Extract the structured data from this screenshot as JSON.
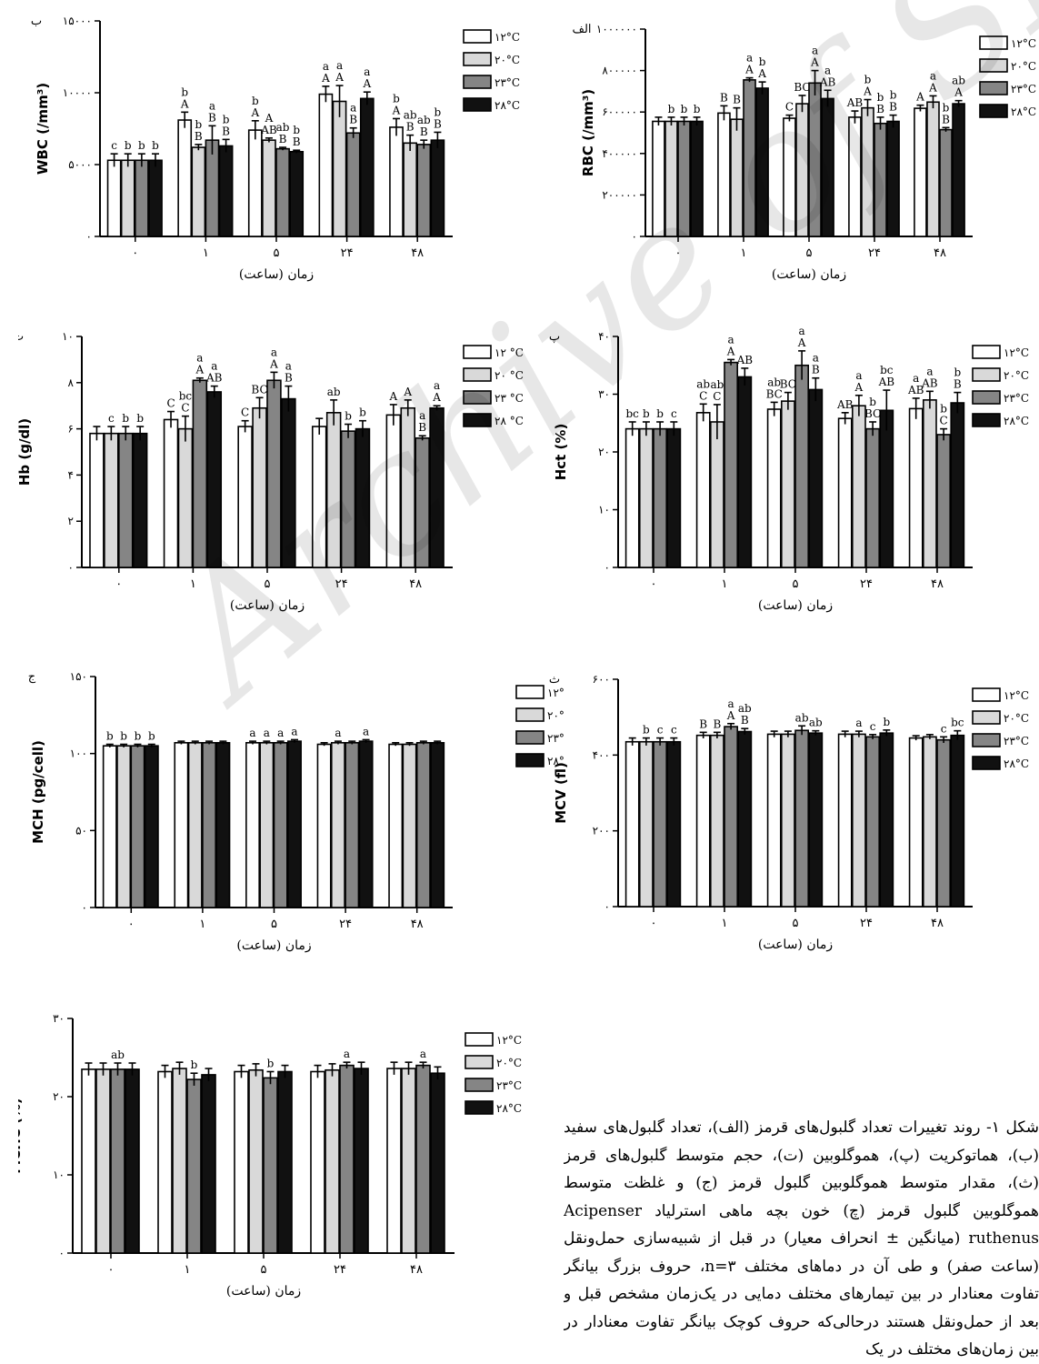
{
  "legend_default": [
    "۱۲°C",
    "۲۰°C",
    "۲۳°C",
    "۲۸°C"
  ],
  "legend_hb": [
    "۱۲ °C",
    "۲۰ °C",
    "۲۳ °C",
    "۲۸ °C"
  ],
  "legend_mch": [
    "۱۲°C",
    "۲۰°C",
    "۲۳°C",
    "۲۸°C"
  ],
  "colors": [
    "#ffffff",
    "#d9d9d9",
    "#858585",
    "#111111"
  ],
  "caption": "شکل ۱- روند تغییرات تعداد گلبول‌های قرمز (الف)، تعداد گلبول‌های سفید (ب)، هماتوکریت (پ)، هموگلوبین (ت)، حجم متوسط گلبول‌های قرمز (ث)، مقدار متوسط هموگلوبین گلبول قرمز (ج) و غلظت متوسط هموگلوبین گلبول قرمز (چ) خون بچه ماهی استرلیاد Acipenser ruthenus (میانگین ± انحراف معیار) در قبل از شبیه‌سازی حمل‌ونقل (ساعت صفر) و طی آن در دماهای مختلف n=۳، حروف بزرگ بیانگر تفاوت معنادار در بین تیمارهای مختلف دمایی در یک‌زمان مشخص قبل و بعد از حمل‌ونقل هستند درحالی‌که حروف کوچک بیانگر تفاوت معنادار در بین زمان‌های مختلف در یک",
  "watermark": "Archive of SID",
  "chart_data": [
    {
      "id": "wbc",
      "type": "bar",
      "panel_label": "ب",
      "ylabel": "WBC (/mm³)",
      "xlabel": "زمان (ساعت)",
      "ylim": [
        0,
        15000
      ],
      "yticks": [
        0,
        5000,
        10000,
        15000
      ],
      "ytick_labels": [
        "۰",
        "۵۰۰۰",
        "۱۰۰۰۰",
        "۱۵۰۰۰"
      ],
      "categories": [
        "۰",
        "۱",
        "۵",
        "۲۴",
        "۴۸"
      ],
      "grid": false,
      "legend_key": "legend_default",
      "series": [
        {
          "values": [
            5300,
            8100,
            7400,
            9900,
            7600
          ],
          "err": [
            450,
            550,
            650,
            550,
            600
          ]
        },
        {
          "values": [
            5300,
            6200,
            6700,
            9400,
            6500
          ],
          "err": [
            450,
            200,
            150,
            1100,
            550
          ]
        },
        {
          "values": [
            5300,
            6700,
            6100,
            7200,
            6400
          ],
          "err": [
            450,
            1000,
            100,
            350,
            300
          ]
        },
        {
          "values": [
            5300,
            6300,
            5900,
            9600,
            6700
          ],
          "err": [
            450,
            450,
            100,
            450,
            550
          ]
        }
      ],
      "labels": [
        [
          "c",
          "b\nA",
          "b\nA",
          "a\nA",
          "b\nA"
        ],
        [
          "b",
          "b\nB",
          "A\nAB",
          "a\nA",
          "ab\nB"
        ],
        [
          "b",
          "a\nB",
          "ab\nB",
          "a\nB",
          "ab\nB"
        ],
        [
          "b",
          "b\nB",
          "b\nB",
          "a\nA",
          "b\nB"
        ]
      ]
    },
    {
      "id": "rbc",
      "type": "bar",
      "panel_label": "الف",
      "ylabel": "RBC (/mm³)",
      "xlabel": "زمان (ساعت)",
      "ylim": [
        0,
        1000000
      ],
      "yticks": [
        0,
        200000,
        400000,
        600000,
        800000,
        1000000
      ],
      "ytick_labels": [
        "۰",
        "۲۰۰۰۰۰",
        "۴۰۰۰۰۰",
        "۶۰۰۰۰۰",
        "۸۰۰۰۰۰",
        "۱۰۰۰۰۰۰"
      ],
      "categories": [
        "۰",
        "۱",
        "۵",
        "۲۴",
        "۴۸"
      ],
      "grid": false,
      "legend_key": "legend_default",
      "series": [
        {
          "values": [
            555000,
            595000,
            570000,
            575000,
            618000
          ],
          "err": [
            20000,
            35000,
            15000,
            30000,
            15000
          ]
        },
        {
          "values": [
            555000,
            565000,
            640000,
            620000,
            648000
          ],
          "err": [
            20000,
            55000,
            40000,
            40000,
            30000
          ]
        },
        {
          "values": [
            555000,
            755000,
            740000,
            545000,
            515000
          ],
          "err": [
            20000,
            10000,
            60000,
            30000,
            10000
          ]
        },
        {
          "values": [
            555000,
            715000,
            665000,
            555000,
            640000
          ],
          "err": [
            20000,
            30000,
            40000,
            30000,
            15000
          ]
        }
      ],
      "labels": [
        [
          "",
          "B",
          "C",
          "AB",
          "A"
        ],
        [
          "b",
          "B",
          "BC",
          "b\nA",
          "a\nA"
        ],
        [
          "b",
          "a\nA",
          "a\nA",
          "b\nB",
          "b\nB"
        ],
        [
          "b",
          "b\nA",
          "a\nAB",
          "b\nB",
          "ab\nA"
        ]
      ]
    },
    {
      "id": "hb",
      "type": "bar",
      "panel_label": "ت",
      "ylabel": "Hb (g/dl)",
      "xlabel": "زمان (ساعت)",
      "ylim": [
        0,
        10
      ],
      "yticks": [
        0,
        2,
        4,
        6,
        8,
        10
      ],
      "ytick_labels": [
        "۰",
        "۲",
        "۴",
        "۶",
        "۸",
        "۱۰"
      ],
      "categories": [
        "۰",
        "۱",
        "۵",
        "۲۴",
        "۴۸"
      ],
      "grid": false,
      "legend_key": "legend_hb",
      "series": [
        {
          "values": [
            5.8,
            6.4,
            6.1,
            6.1,
            6.6
          ],
          "err": [
            0.3,
            0.35,
            0.25,
            0.35,
            0.45
          ]
        },
        {
          "values": [
            5.8,
            6.0,
            6.9,
            6.7,
            6.9
          ],
          "err": [
            0.3,
            0.55,
            0.45,
            0.55,
            0.35
          ]
        },
        {
          "values": [
            5.8,
            8.1,
            8.1,
            5.9,
            5.6
          ],
          "err": [
            0.3,
            0.1,
            0.35,
            0.3,
            0.1
          ]
        },
        {
          "values": [
            5.8,
            7.6,
            7.3,
            6.0,
            6.9
          ],
          "err": [
            0.3,
            0.25,
            0.55,
            0.35,
            0.1
          ]
        }
      ],
      "labels": [
        [
          "",
          "C",
          "C",
          "",
          "A"
        ],
        [
          "c",
          "bc\nC",
          "BC",
          "ab",
          "A"
        ],
        [
          "b",
          "a\nA",
          "a\nA",
          "b",
          "a\nB"
        ],
        [
          "b",
          "a\nAB",
          "a\nB",
          "b",
          "a\nA"
        ]
      ]
    },
    {
      "id": "hct",
      "type": "bar",
      "panel_label": "پ",
      "ylabel": "Hct (%)",
      "xlabel": "زمان (ساعت)",
      "ylim": [
        0,
        40
      ],
      "yticks": [
        0,
        10,
        20,
        30,
        40
      ],
      "ytick_labels": [
        "۰",
        "۱۰",
        "۲۰",
        "۳۰",
        "۴۰"
      ],
      "categories": [
        "۰",
        "۱",
        "۵",
        "۲۴",
        "۴۸"
      ],
      "grid": false,
      "legend_key": "legend_default",
      "series": [
        {
          "values": [
            24,
            26.8,
            27.4,
            25.8,
            27.5
          ],
          "err": [
            1.2,
            1.5,
            1.2,
            1.0,
            1.8
          ]
        },
        {
          "values": [
            24,
            25.2,
            28.8,
            28.0,
            29.0
          ],
          "err": [
            1.2,
            3.0,
            1.5,
            1.8,
            1.5
          ]
        },
        {
          "values": [
            24,
            35.5,
            35.0,
            24.0,
            23.0
          ],
          "err": [
            1.2,
            0.5,
            2.5,
            1.2,
            1.0
          ]
        },
        {
          "values": [
            24,
            33.0,
            30.8,
            27.2,
            28.5
          ],
          "err": [
            1.2,
            1.5,
            2.0,
            3.5,
            1.8
          ]
        }
      ],
      "labels": [
        [
          "bc",
          "ab\nC",
          "ab\nBC",
          "AB",
          "a\nAB"
        ],
        [
          "b",
          "ab\nC",
          "BC",
          "a\nA",
          "a\nAB"
        ],
        [
          "b",
          "a\nA",
          "a\nA",
          "b\nBC",
          "b\nC"
        ],
        [
          "c",
          "AB",
          "a\nB",
          "bc\nAB",
          "b\nB"
        ]
      ]
    },
    {
      "id": "mch",
      "type": "bar",
      "panel_label": "ج",
      "ylabel": "MCH (pg/cell)",
      "xlabel": "زمان (ساعت)",
      "ylim": [
        0,
        150
      ],
      "yticks": [
        0,
        50,
        100,
        150
      ],
      "ytick_labels": [
        "۰",
        "۵۰",
        "۱۰۰",
        "۱۵۰"
      ],
      "categories": [
        "۰",
        "۱",
        "۵",
        "۲۴",
        "۴۸"
      ],
      "grid": false,
      "legend_key": "legend_mch",
      "series": [
        {
          "values": [
            105,
            107,
            107,
            106,
            106
          ],
          "err": [
            1,
            1,
            1,
            1,
            1
          ]
        },
        {
          "values": [
            105,
            107,
            107,
            107,
            106
          ],
          "err": [
            1,
            1,
            1,
            1,
            1
          ]
        },
        {
          "values": [
            105,
            107,
            107,
            107,
            107
          ],
          "err": [
            1,
            1,
            1,
            1,
            1
          ]
        },
        {
          "values": [
            105,
            107,
            108,
            108,
            107
          ],
          "err": [
            1,
            1,
            1,
            1,
            1
          ]
        }
      ],
      "labels": [
        [
          "b",
          "",
          "a",
          "",
          ""
        ],
        [
          "b",
          "",
          "a",
          "a",
          ""
        ],
        [
          "b",
          "",
          "a",
          "",
          ""
        ],
        [
          "b",
          "",
          "a",
          "a",
          ""
        ]
      ]
    },
    {
      "id": "mcv",
      "type": "bar",
      "panel_label": "ث",
      "ylabel": "MCV (fl)",
      "xlabel": "زمان (ساعت)",
      "ylim": [
        0,
        600
      ],
      "yticks": [
        0,
        200,
        400,
        600
      ],
      "ytick_labels": [
        "۰",
        "۲۰۰",
        "۴۰۰",
        "۶۰۰"
      ],
      "categories": [
        "۰",
        "۱",
        "۵",
        "۲۴",
        "۴۸"
      ],
      "grid": false,
      "legend_key": "legend_default",
      "series": [
        {
          "values": [
            435,
            452,
            455,
            455,
            445
          ],
          "err": [
            10,
            8,
            8,
            8,
            6
          ]
        },
        {
          "values": [
            435,
            452,
            455,
            455,
            448
          ],
          "err": [
            10,
            8,
            8,
            8,
            6
          ]
        },
        {
          "values": [
            435,
            475,
            465,
            448,
            440
          ],
          "err": [
            10,
            8,
            12,
            6,
            8
          ]
        },
        {
          "values": [
            435,
            462,
            458,
            458,
            452
          ],
          "err": [
            10,
            8,
            6,
            8,
            12
          ]
        }
      ],
      "labels": [
        [
          "",
          "B",
          "",
          "",
          ""
        ],
        [
          "b",
          "B",
          "",
          "a",
          ""
        ],
        [
          "c",
          "a\nA",
          "ab",
          "c",
          "c"
        ],
        [
          "c",
          "ab\nB",
          "ab",
          "b",
          "bc"
        ]
      ]
    },
    {
      "id": "mchc",
      "type": "bar",
      "panel_label": "چ",
      "ylabel": "MCHC (%)",
      "xlabel": "زمان (ساعت)",
      "ylim": [
        0,
        30
      ],
      "yticks": [
        0,
        10,
        20,
        30
      ],
      "ytick_labels": [
        "۰",
        "۱۰",
        "۲۰",
        "۳۰"
      ],
      "categories": [
        "۰",
        "۱",
        "۵",
        "۲۴",
        "۴۸"
      ],
      "grid": false,
      "legend_key": "legend_mch",
      "series": [
        {
          "values": [
            23.5,
            23.2,
            23.2,
            23.2,
            23.6
          ],
          "err": [
            0.8,
            0.8,
            0.8,
            0.8,
            0.8
          ]
        },
        {
          "values": [
            23.5,
            23.6,
            23.4,
            23.4,
            23.6
          ],
          "err": [
            0.8,
            0.8,
            0.8,
            0.8,
            0.8
          ]
        },
        {
          "values": [
            23.5,
            22.2,
            22.4,
            24.0,
            24.0
          ],
          "err": [
            0.8,
            0.8,
            0.8,
            0.4,
            0.4
          ]
        },
        {
          "values": [
            23.5,
            22.8,
            23.2,
            23.6,
            23.0
          ],
          "err": [
            0.8,
            0.8,
            0.8,
            0.8,
            0.8
          ]
        }
      ],
      "labels": [
        [
          "",
          "",
          "",
          "",
          ""
        ],
        [
          "",
          "",
          "",
          "",
          ""
        ],
        [
          "ab",
          "b",
          "b",
          "a",
          "a"
        ],
        [
          "",
          "",
          "",
          "",
          ""
        ]
      ]
    }
  ]
}
